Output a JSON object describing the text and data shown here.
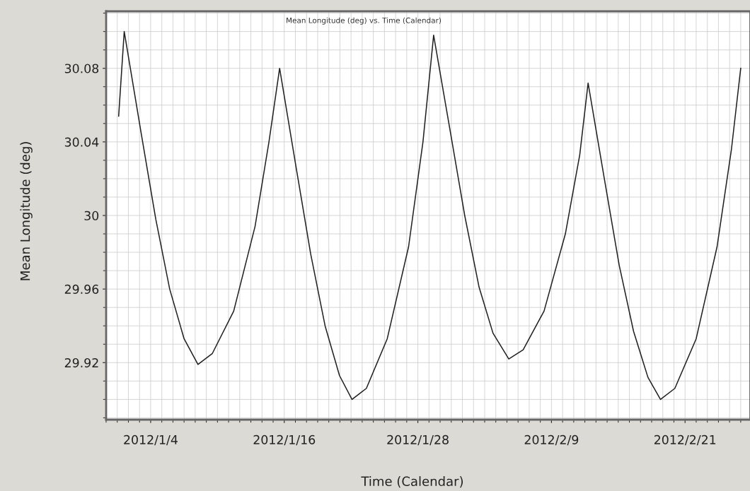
{
  "chart_data": {
    "type": "line",
    "title": "Mean Longitude (deg) vs. Time (Calendar)",
    "xlabel": "Time (Calendar)",
    "ylabel": "Mean Longitude (deg)",
    "x": [
      "2012-01-01T03:00",
      "2012-01-01T15:00",
      "2012-01-03T04:00",
      "2012-01-04T11:00",
      "2012-01-05T17:00",
      "2012-01-07T00:00",
      "2012-01-08T06:00",
      "2012-01-09T13:00",
      "2012-01-11T11:00",
      "2012-01-13T09:00",
      "2012-01-14T15:00",
      "2012-01-15T14:00",
      "2012-01-17T03:00",
      "2012-01-18T09:00",
      "2012-01-19T16:00",
      "2012-01-20T23:00",
      "2012-01-22T02:00",
      "2012-01-23T09:00",
      "2012-01-25T06:00",
      "2012-01-27T04:00",
      "2012-01-28T11:00",
      "2012-01-29T10:00",
      "2012-01-30T23:00",
      "2012-02-01T05:00",
      "2012-02-02T12:00",
      "2012-02-03T18:00",
      "2012-02-05T04:00",
      "2012-02-06T11:00",
      "2012-02-08T08:00",
      "2012-02-10T06:00",
      "2012-02-11T13:00",
      "2012-02-12T07:00",
      "2012-02-13T20:00",
      "2012-02-15T02:00",
      "2012-02-16T09:00",
      "2012-02-17T16:00",
      "2012-02-18T19:00",
      "2012-02-20T02:00",
      "2012-02-22T00:00",
      "2012-02-23T21:00",
      "2012-02-25T04:00",
      "2012-02-26T00:00"
    ],
    "series": [
      {
        "color": "#202020",
        "values": [
          30.054,
          30.1,
          30.044,
          29.998,
          29.96,
          29.933,
          29.919,
          29.925,
          29.948,
          29.994,
          30.04,
          30.08,
          30.024,
          29.979,
          29.94,
          29.913,
          29.9,
          29.906,
          29.933,
          29.983,
          30.04,
          30.098,
          30.044,
          30.0,
          29.961,
          29.936,
          29.922,
          29.927,
          29.948,
          29.99,
          30.033,
          30.072,
          30.017,
          29.973,
          29.937,
          29.912,
          29.9,
          29.906,
          29.933,
          29.983,
          30.036,
          30.08
        ]
      }
    ],
    "xlim": [
      "2011-12-31T00:00",
      "2012-02-26T20:00"
    ],
    "xticks": [
      {
        "value": "2012-01-04",
        "label": "2012/1/4"
      },
      {
        "value": "2012-01-16",
        "label": "2012/1/16"
      },
      {
        "value": "2012-01-28",
        "label": "2012/1/28"
      },
      {
        "value": "2012-02-09",
        "label": "2012/2/9"
      },
      {
        "value": "2012-02-21",
        "label": "2012/2/21"
      }
    ],
    "ylim": [
      29.889,
      30.111
    ],
    "yticks": [
      {
        "value": 29.92,
        "label": "29.92"
      },
      {
        "value": 29.96,
        "label": "29.96"
      },
      {
        "value": 30,
        "label": "30"
      },
      {
        "value": 30.04,
        "label": "30.04"
      },
      {
        "value": 30.08,
        "label": "30.08"
      }
    ],
    "grid": true,
    "legend": false,
    "marker": "none",
    "line_style": "solid"
  }
}
